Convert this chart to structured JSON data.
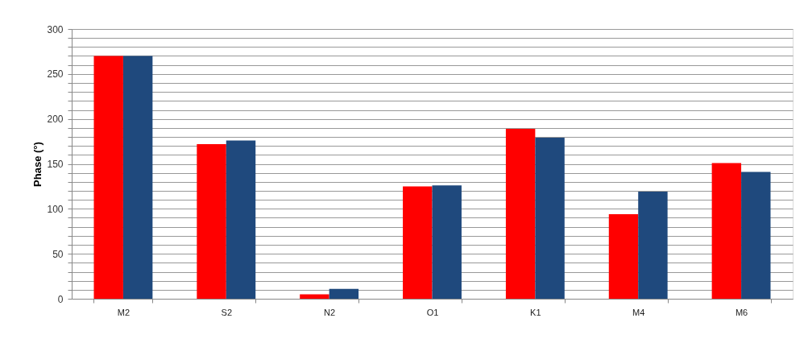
{
  "chart_data": {
    "type": "bar",
    "ylabel": "Phase (°)",
    "categories": [
      "M2",
      "S2",
      "N2",
      "O1",
      "K1",
      "M4",
      "M6"
    ],
    "series": [
      {
        "color": "#ff0000",
        "values": [
          270,
          172,
          5,
          125,
          189,
          94,
          151
        ]
      },
      {
        "color": "#1f497d",
        "values": [
          270,
          176,
          11,
          126,
          179,
          119,
          141
        ]
      }
    ],
    "ylim": [
      0,
      300
    ],
    "yticks": [
      0,
      {
        "value": 10,
        "label": null
      },
      {
        "value": 20,
        "label": null
      },
      {
        "value": 30,
        "label": null
      },
      {
        "value": 40,
        "label": null
      },
      50,
      {
        "value": 60,
        "label": null
      },
      {
        "value": 70,
        "label": null
      },
      {
        "value": 80,
        "label": null
      },
      {
        "value": 90,
        "label": null
      },
      100,
      {
        "value": 110,
        "label": null
      },
      {
        "value": 120,
        "label": null
      },
      {
        "value": 130,
        "label": null
      },
      {
        "value": 140,
        "label": null
      },
      150,
      {
        "value": 160,
        "label": null
      },
      {
        "value": 170,
        "label": null
      },
      {
        "value": 180,
        "label": null
      },
      {
        "value": 190,
        "label": null
      },
      200,
      {
        "value": 210,
        "label": null
      },
      {
        "value": 220,
        "label": null
      },
      {
        "value": 230,
        "label": null
      },
      {
        "value": 240,
        "label": null
      },
      250,
      {
        "value": 260,
        "label": null
      },
      {
        "value": 270,
        "label": null
      },
      {
        "value": 280,
        "label": null
      },
      {
        "value": 290,
        "label": null
      },
      300
    ],
    "grid": "y",
    "legend": false
  }
}
